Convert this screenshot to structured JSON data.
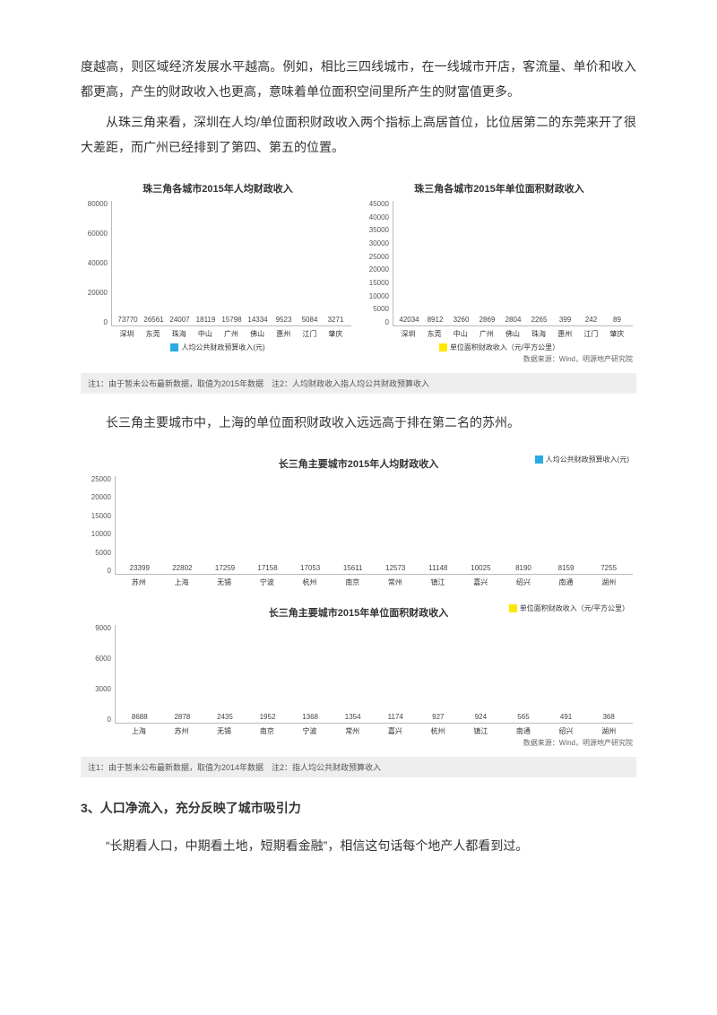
{
  "paragraphs": {
    "p1": "度越高，则区域经济发展水平越高。例如，相比三四线城市，在一线城市开店，客流量、单价和收入都更高，产生的财政收入也更高，意味着单位面积空间里所产生的财富值更多。",
    "p2": "从珠三角来看，深圳在人均/单位面积财政收入两个指标上高居首位，比位居第二的东莞来开了很大差距，而广州已经排到了第四、第五的位置。",
    "p3": "长三角主要城市中，上海的单位面积财政收入远远高于排在第二名的苏州。",
    "p4": "“长期看人口，中期看土地，短期看金融”，相信这句话每个地产人都看到过。"
  },
  "section_heading": "3、人口净流入，充分反映了城市吸引力",
  "colors": {
    "blue": "#29abe2",
    "yellow": "#ffe600",
    "grid": "#eeeeee"
  },
  "chart_prd_left": {
    "title": "珠三角各城市2015年人均财政收入",
    "ymax": 80000,
    "ystep": 20000,
    "yticks": [
      "0",
      "20000",
      "40000",
      "60000",
      "80000"
    ],
    "cats": [
      "深圳",
      "东莞",
      "珠海",
      "中山",
      "广州",
      "佛山",
      "惠州",
      "江门",
      "肇庆"
    ],
    "vals": [
      73770,
      26561,
      24007,
      18119,
      15798,
      14334,
      9523,
      5084,
      3271
    ],
    "legend": "人均公共财政预算收入(元)"
  },
  "chart_prd_right": {
    "title": "珠三角各城市2015年单位面积财政收入",
    "ymax": 45000,
    "ystep": 5000,
    "yticks": [
      "0",
      "5000",
      "10000",
      "15000",
      "20000",
      "25000",
      "30000",
      "35000",
      "40000",
      "45000"
    ],
    "cats": [
      "深圳",
      "东莞",
      "中山",
      "广州",
      "佛山",
      "珠海",
      "惠州",
      "江门",
      "肇庆"
    ],
    "vals": [
      42034,
      8912,
      3260,
      2869,
      2804,
      2265,
      399,
      242,
      89
    ],
    "legend": "单位面积财政收入（元/平方公里）",
    "source": "数据来源：Wind，明源地产研究院"
  },
  "footnote_prd": "注1：由于暂未公布最新数据，取值为2015年数据　注2：人均财政收入指人均公共财政预算收入",
  "chart_yrd_top": {
    "title": "长三角主要城市2015年人均财政收入",
    "ymax": 25000,
    "ystep": 5000,
    "yticks": [
      "0",
      "5000",
      "10000",
      "15000",
      "20000",
      "25000"
    ],
    "cats": [
      "苏州",
      "上海",
      "无锡",
      "宁波",
      "杭州",
      "南京",
      "常州",
      "镇江",
      "嘉兴",
      "绍兴",
      "南通",
      "湖州"
    ],
    "vals": [
      23399,
      22802,
      17259,
      17158,
      17053,
      15611,
      12573,
      11148,
      10025,
      8190,
      8159,
      7255
    ],
    "legend": "人均公共财政预算收入(元)"
  },
  "chart_yrd_bot": {
    "title": "长三角主要城市2015年单位面积财政收入",
    "ymax": 9000,
    "ystep": 3000,
    "yticks": [
      "0",
      "3000",
      "6000",
      "9000"
    ],
    "cats": [
      "上海",
      "苏州",
      "无锡",
      "南京",
      "宁波",
      "常州",
      "嘉兴",
      "杭州",
      "镇江",
      "南通",
      "绍兴",
      "湖州"
    ],
    "vals": [
      8688,
      2878,
      2435,
      1952,
      1368,
      1354,
      1174,
      927,
      924,
      565,
      491,
      368
    ],
    "legend": "单位面积财政收入（元/平方公里）",
    "source": "数据来源：Wind，明源地产研究院"
  },
  "footnote_yrd": "注1：由于暂未公布最新数据，取值为2014年数据　注2：指人均公共财政预算收入"
}
